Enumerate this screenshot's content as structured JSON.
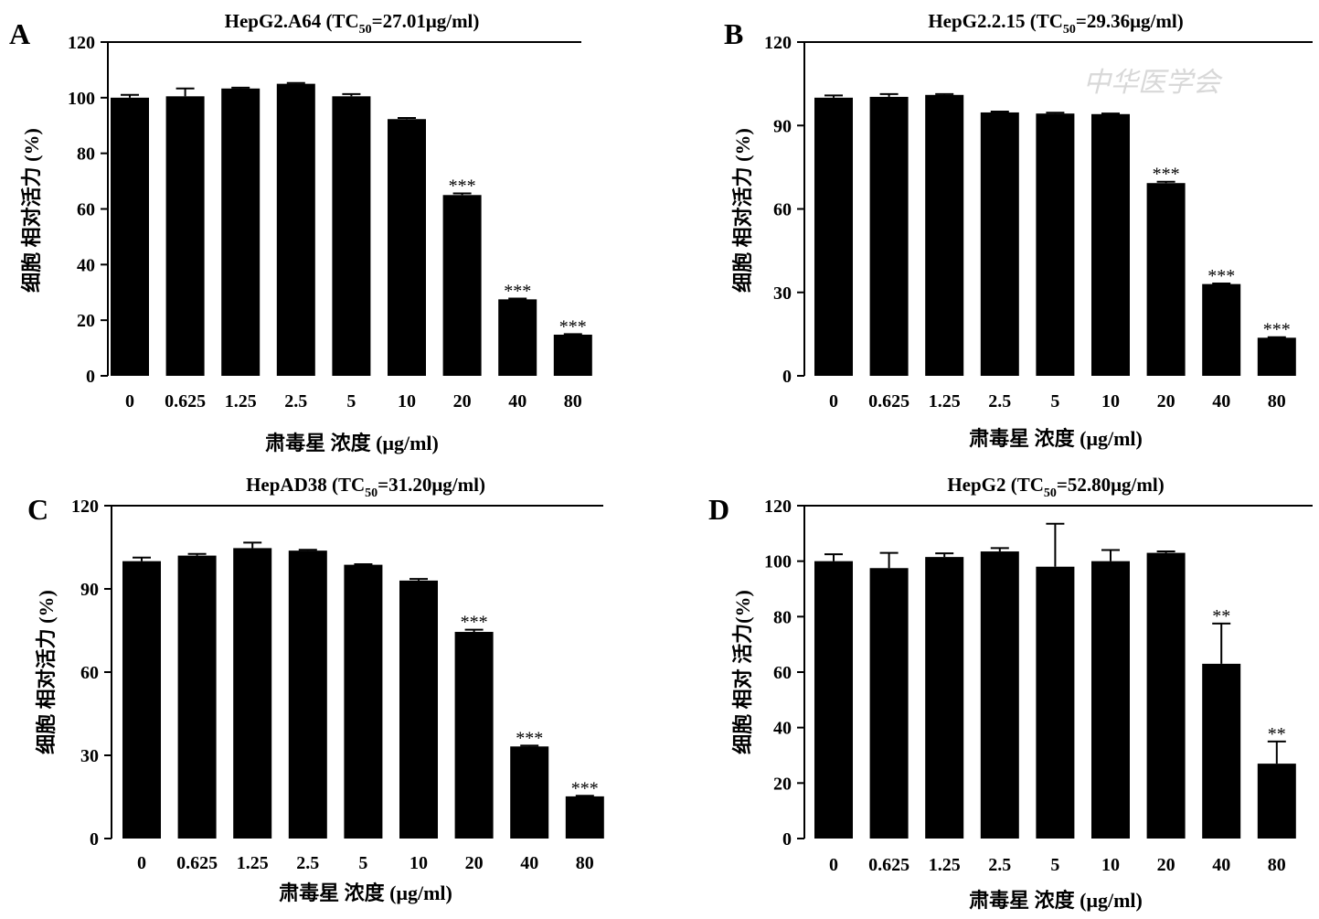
{
  "watermark": "中华医学会",
  "chart_data": [
    {
      "type": "bar",
      "panel": "A",
      "title": {
        "prefix": "HepG2.A64 (TC",
        "sub": "50",
        "suffix": "=27.01μg/ml)"
      },
      "xlabel": "肃毒星 浓度 (μg/ml)",
      "ylabel": "细胞 相对活力 (%)",
      "ylim": [
        0,
        120
      ],
      "yticks": [
        0,
        20,
        40,
        60,
        80,
        100,
        120
      ],
      "categories": [
        "0",
        "0.625",
        "1.25",
        "2.5",
        "5",
        "10",
        "20",
        "40",
        "80"
      ],
      "values": [
        100,
        100.5,
        103.3,
        105,
        100.5,
        92.3,
        65,
        27.5,
        14.8
      ],
      "errors": [
        1,
        2.8,
        0.3,
        0.3,
        0.8,
        0.4,
        0.6,
        0.3,
        0.2
      ],
      "significance": [
        "",
        "",
        "",
        "",
        "",
        "",
        "***",
        "***",
        "***"
      ]
    },
    {
      "type": "bar",
      "panel": "B",
      "title": {
        "prefix": "HepG2.2.15 (TC",
        "sub": "50",
        "suffix": "=29.36μg/ml)"
      },
      "xlabel": "肃毒星 浓度 (μg/ml)",
      "ylabel": "细胞 相对活力 (%)",
      "ylim": [
        0,
        120
      ],
      "yticks": [
        0,
        30,
        60,
        90,
        120
      ],
      "categories": [
        "0",
        "0.625",
        "1.25",
        "2.5",
        "5",
        "10",
        "20",
        "40",
        "80"
      ],
      "values": [
        100,
        100.3,
        101,
        94.7,
        94.3,
        94.1,
        69.3,
        33,
        13.7
      ],
      "errors": [
        0.8,
        1,
        0.3,
        0.3,
        0.3,
        0.2,
        0.5,
        0.2,
        0.2
      ],
      "significance": [
        "",
        "",
        "",
        "",
        "",
        "",
        "***",
        "***",
        "***"
      ]
    },
    {
      "type": "bar",
      "panel": "C",
      "title": {
        "prefix": "HepAD38 (TC",
        "sub": "50",
        "suffix": "=31.20μg/ml)"
      },
      "xlabel": "肃毒星 浓度 (μg/ml)",
      "ylabel": "细胞 相对活力 (%)",
      "ylim": [
        0,
        120
      ],
      "yticks": [
        0,
        30,
        60,
        90,
        120
      ],
      "categories": [
        "0",
        "0.625",
        "1.25",
        "2.5",
        "5",
        "10",
        "20",
        "40",
        "80"
      ],
      "values": [
        100,
        102,
        104.7,
        103.8,
        98.7,
        93,
        74.5,
        33.2,
        15.2
      ],
      "errors": [
        1.3,
        0.6,
        2,
        0.3,
        0.2,
        0.6,
        0.8,
        0.3,
        0.2
      ],
      "significance": [
        "",
        "",
        "",
        "",
        "",
        "",
        "***",
        "***",
        "***"
      ]
    },
    {
      "type": "bar",
      "panel": "D",
      "title": {
        "prefix": "HepG2 (TC",
        "sub": "50",
        "suffix": "=52.80μg/ml)"
      },
      "xlabel": "肃毒星 浓度 (μg/ml)",
      "ylabel": "细胞 相对 活力(%)",
      "ylim": [
        0,
        120
      ],
      "yticks": [
        0,
        20,
        40,
        60,
        80,
        100,
        120
      ],
      "categories": [
        "0",
        "0.625",
        "1.25",
        "2.5",
        "5",
        "10",
        "20",
        "40",
        "80"
      ],
      "values": [
        100,
        97.5,
        101.5,
        103.5,
        98,
        100,
        103,
        63,
        27
      ],
      "errors": [
        2.5,
        5.5,
        1.3,
        1.2,
        15.5,
        4,
        0.5,
        14.5,
        8
      ],
      "significance": [
        "",
        "",
        "",
        "",
        "",
        "",
        "",
        "**",
        "**"
      ]
    }
  ]
}
